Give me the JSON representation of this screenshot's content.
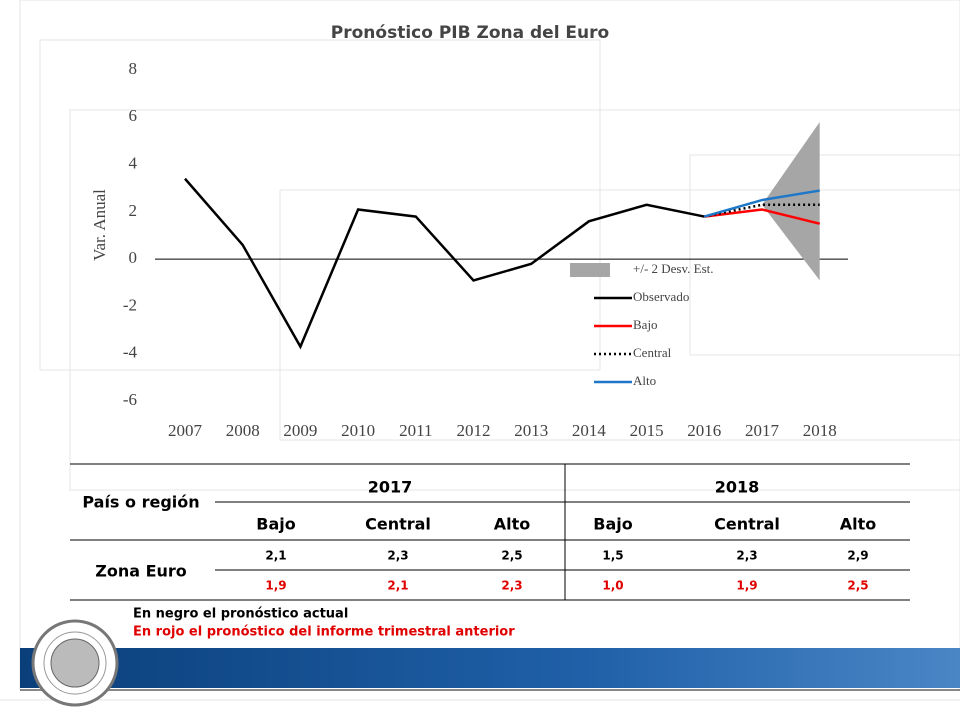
{
  "chart_data": {
    "type": "line",
    "title": "Pronóstico PIB Zona del Euro",
    "ylabel": "Var. Anual",
    "categories": [
      "2007",
      "2008",
      "2009",
      "2010",
      "2011",
      "2012",
      "2013",
      "2014",
      "2015",
      "2016",
      "2017",
      "2018"
    ],
    "ylim": [
      -6,
      8
    ],
    "yticks": [
      -6,
      -4,
      -2,
      0,
      2,
      4,
      6,
      8
    ],
    "band": {
      "name": "+/- 2 Desv. Est.",
      "color": "#a6a6a6",
      "lower": [
        null,
        null,
        null,
        null,
        null,
        null,
        null,
        null,
        null,
        null,
        2.3,
        -0.9
      ],
      "upper": [
        null,
        null,
        null,
        null,
        null,
        null,
        null,
        null,
        null,
        null,
        2.3,
        5.8
      ]
    },
    "series": [
      {
        "name": "Observado",
        "color": "#000000",
        "dash": false,
        "values": [
          3.4,
          0.6,
          -3.7,
          2.1,
          1.8,
          -0.9,
          -0.2,
          1.6,
          2.3,
          1.8,
          null,
          null
        ]
      },
      {
        "name": "Bajo",
        "color": "#ff0000",
        "dash": false,
        "values": [
          null,
          null,
          null,
          null,
          null,
          null,
          null,
          null,
          null,
          1.8,
          2.1,
          1.5
        ]
      },
      {
        "name": "Central",
        "color": "#000000",
        "dash": true,
        "values": [
          null,
          null,
          null,
          null,
          null,
          null,
          null,
          null,
          null,
          1.8,
          2.3,
          2.3
        ]
      },
      {
        "name": "Alto",
        "color": "#1f77c8",
        "dash": false,
        "values": [
          null,
          null,
          null,
          null,
          null,
          null,
          null,
          null,
          null,
          1.8,
          2.5,
          2.9
        ]
      }
    ]
  },
  "table": {
    "row_header": "País o región",
    "groups": [
      "2017",
      "2018"
    ],
    "columns": [
      "Bajo",
      "Central",
      "Alto",
      "Bajo",
      "Central",
      "Alto"
    ],
    "row_label": "Zona Euro",
    "current": [
      "2,1",
      "2,3",
      "2,5",
      "1,5",
      "2,3",
      "2,9"
    ],
    "previous": [
      "1,9",
      "2,1",
      "2,3",
      "1,0",
      "1,9",
      "2,5"
    ]
  },
  "notes": [
    "En negro el pronóstico actual",
    "En rojo el pronóstico del informe trimestral anterior"
  ]
}
